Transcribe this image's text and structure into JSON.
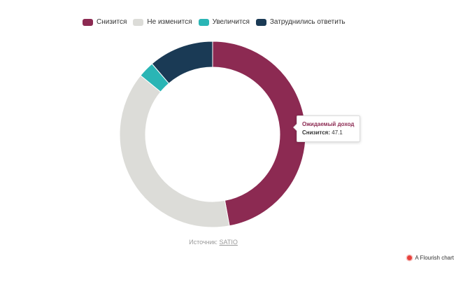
{
  "chart_data": {
    "type": "pie",
    "variant": "donut",
    "categories": [
      "Снизится",
      "Не изменится",
      "Увеличится",
      "Затруднились ответить"
    ],
    "values": [
      47.1,
      38.8,
      2.8,
      11.3
    ],
    "colors": [
      "#8c2a52",
      "#dcdcd8",
      "#2ab5b5",
      "#1a3a55"
    ],
    "legend_position": "top"
  },
  "tooltip": {
    "title": "Ожидаемый доход",
    "label": "Снизится:",
    "value": "47.1",
    "title_color": "#8c2a52"
  },
  "source": {
    "prefix": "Источник:",
    "link": "SATIO"
  },
  "credit": {
    "text": "A Flourish chart",
    "icon": "flourish-logo-icon"
  }
}
